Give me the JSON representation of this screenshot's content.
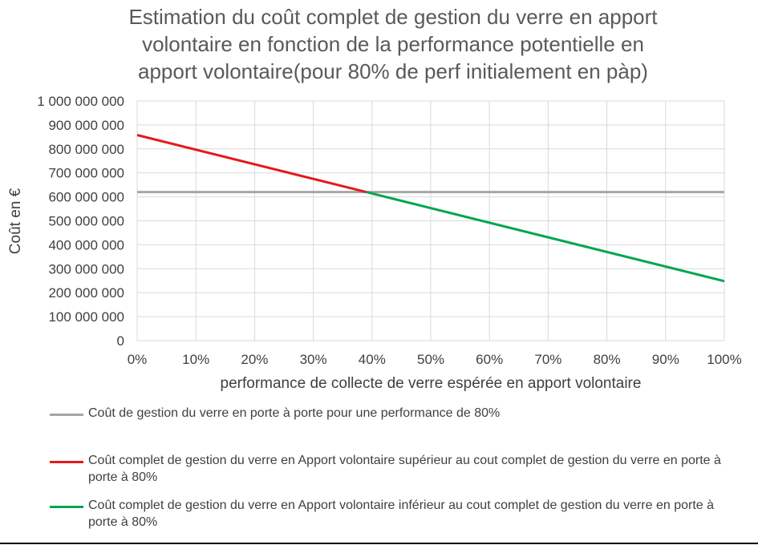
{
  "chart_data": {
    "type": "line",
    "title": "Estimation du coût complet de gestion du verre en apport volontaire en fonction de la performance potentielle en apport volontaire(pour 80% de perf initialement en pàp)",
    "title_lines": [
      "Estimation du coût complet de gestion du verre en apport",
      "volontaire en fonction de la performance potentielle en",
      "apport volontaire(pour 80% de perf initialement en pàp)"
    ],
    "xlabel": "performance de collecte de verre espérée en apport volontaire",
    "ylabel": "Coût en €",
    "xlim": [
      0,
      1
    ],
    "ylim": [
      0,
      1000000000
    ],
    "x_ticks": [
      0,
      0.1,
      0.2,
      0.3,
      0.4,
      0.5,
      0.6,
      0.7,
      0.8,
      0.9,
      1.0
    ],
    "x_tick_labels": [
      "0%",
      "10%",
      "20%",
      "30%",
      "40%",
      "50%",
      "60%",
      "70%",
      "80%",
      "90%",
      "100%"
    ],
    "y_ticks": [
      0,
      100000000,
      200000000,
      300000000,
      400000000,
      500000000,
      600000000,
      700000000,
      800000000,
      900000000,
      1000000000
    ],
    "y_tick_labels": [
      "0",
      "100 000 000",
      "200 000 000",
      "300 000 000",
      "400 000 000",
      "500 000 000",
      "600 000 000",
      "700 000 000",
      "800 000 000",
      "900 000 000",
      "1 000 000 000"
    ],
    "grid": true,
    "legend_position": "bottom",
    "series": [
      {
        "name": "Coût de gestion du verre en porte à porte pour une performance de 80%",
        "color": "#a6a6a6",
        "x": [
          0,
          1.0
        ],
        "y": [
          620000000,
          620000000
        ]
      },
      {
        "name": "Coût complet de gestion du verre en Apport volontaire supérieur au cout complet de gestion du verre en porte à porte à 80%",
        "color": "#e31a1c",
        "x": [
          0,
          0.39
        ],
        "y": [
          858000000,
          620000000
        ]
      },
      {
        "name": "Coût complet de gestion du verre en Apport volontaire inférieur au cout complet de gestion du verre en porte à porte à 80%",
        "color": "#00a651",
        "x": [
          0.39,
          1.0
        ],
        "y": [
          620000000,
          248000000
        ]
      }
    ]
  }
}
